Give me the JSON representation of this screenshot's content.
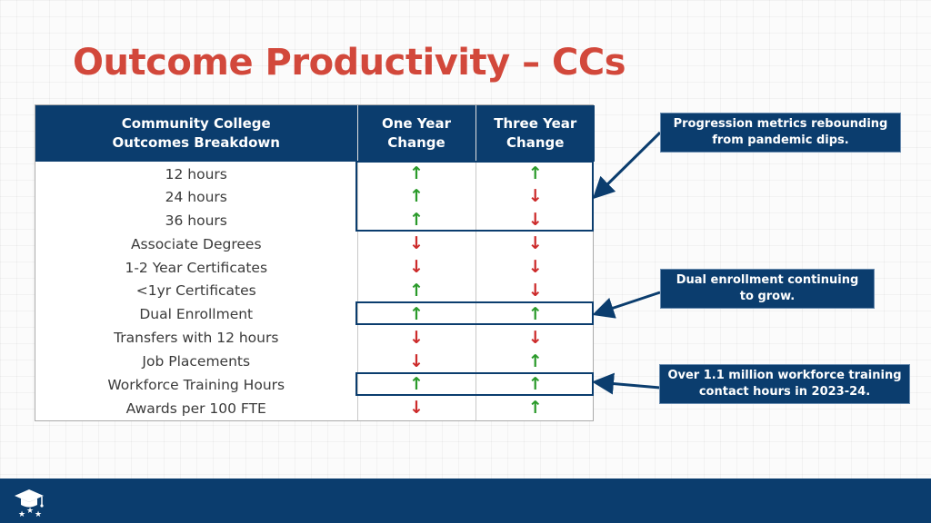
{
  "slide": {
    "title": "Outcome Productivity – CCs"
  },
  "table": {
    "headers": [
      "Community College\nOutcomes Breakdown",
      "One Year\nChange",
      "Three Year\nChange"
    ],
    "rows": [
      {
        "label": "12 hours",
        "one_year": "up",
        "three_year": "up"
      },
      {
        "label": "24 hours",
        "one_year": "up",
        "three_year": "down"
      },
      {
        "label": "36 hours",
        "one_year": "up",
        "three_year": "down"
      },
      {
        "label": "Associate Degrees",
        "one_year": "down",
        "three_year": "down"
      },
      {
        "label": "1-2 Year Certificates",
        "one_year": "down",
        "three_year": "down"
      },
      {
        "label": "<1yr Certificates",
        "one_year": "up",
        "three_year": "down"
      },
      {
        "label": "Dual Enrollment",
        "one_year": "up",
        "three_year": "up"
      },
      {
        "label": "Transfers with 12 hours",
        "one_year": "down",
        "three_year": "down"
      },
      {
        "label": "Job Placements",
        "one_year": "down",
        "three_year": "up"
      },
      {
        "label": "Workforce Training Hours",
        "one_year": "up",
        "three_year": "up"
      },
      {
        "label": "Awards per 100 FTE",
        "one_year": "down",
        "three_year": "up"
      }
    ]
  },
  "callouts": [
    {
      "text": "Progression metrics rebounding\nfrom pandemic dips."
    },
    {
      "text": "Dual enrollment continuing\nto grow."
    },
    {
      "text": "Over 1.1 million workforce training\ncontact hours in 2023-24."
    }
  ],
  "icons": {
    "up": "↑",
    "down": "↓",
    "up_color": "#2a9a2a",
    "down_color": "#cc2a2a",
    "logo": "graduation-cap-stars-icon"
  },
  "colors": {
    "title": "#d2483b",
    "navy": "#0b3d6e"
  }
}
